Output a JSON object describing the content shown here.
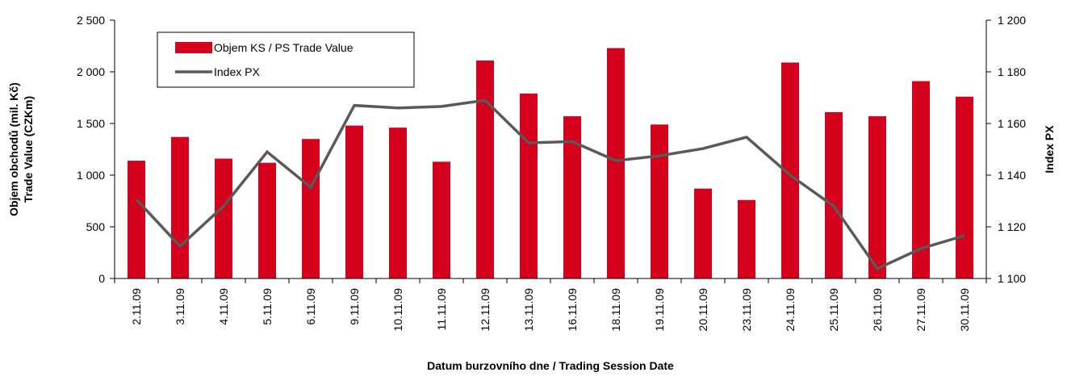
{
  "chart_data": {
    "type": "bar_line",
    "x_label": "Datum burzovního dne / Trading Session Date",
    "y_label": [
      "Objem obchodů (mil. Kč)",
      "Trade Value (CZKm)"
    ],
    "y2_label": "Index PX",
    "categories": [
      "2.11.09",
      "3.11.09",
      "4.11.09",
      "5.11.09",
      "6.11.09",
      "9.11.09",
      "10.11.09",
      "11.11.09",
      "12.11.09",
      "13.11.09",
      "16.11.09",
      "18.11.09",
      "19.11.09",
      "20.11.09",
      "23.11.09",
      "24.11.09",
      "25.11.09",
      "26.11.09",
      "27.11.09",
      "30.11.09"
    ],
    "series": [
      {
        "name": "Objem KS / PS Trade Value",
        "color": "#d5001c",
        "kind": "bar",
        "values": [
          1140,
          1370,
          1160,
          1120,
          1350,
          1480,
          1460,
          1130,
          2110,
          1790,
          1570,
          2230,
          1490,
          870,
          760,
          2090,
          1610,
          1570,
          1910,
          1760
        ]
      },
      {
        "name": "Index PX",
        "color": "#595959",
        "kind": "line",
        "axis": "y2",
        "values": [
          1130.6,
          1112.5,
          1128,
          1149,
          1135.3,
          1167,
          1166,
          1166.6,
          1169,
          1152.5,
          1153,
          1145.6,
          1147.5,
          1150.3,
          1154.7,
          1140,
          1128,
          1103.8,
          1111.6,
          1116.6
        ]
      }
    ],
    "ylim": [
      0,
      2500
    ],
    "yticks": [
      0,
      500,
      {
        "value": 1000,
        "label": "1 000"
      },
      {
        "value": 1500,
        "label": "1 500"
      },
      {
        "value": 2000,
        "label": "2 000"
      },
      {
        "value": 2500,
        "label": "2 500"
      }
    ],
    "y2lim": [
      1100,
      1200
    ],
    "y2ticks": [
      {
        "value": 1100,
        "label": "1 100"
      },
      {
        "value": 1120,
        "label": "1 120"
      },
      {
        "value": 1140,
        "label": "1 140"
      },
      {
        "value": 1160,
        "label": "1 160"
      },
      {
        "value": 1180,
        "label": "1 180"
      },
      {
        "value": 1200,
        "label": "1 200"
      }
    ],
    "legend": "upper left"
  }
}
